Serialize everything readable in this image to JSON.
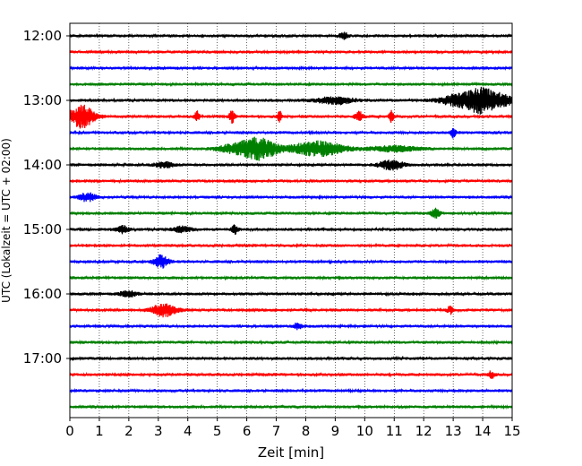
{
  "chart_data": {
    "type": "line",
    "title": "",
    "xlabel": "Zeit  [min]",
    "ylabel": "UTC (Lokalzeit = UTC + 02:00)",
    "xlim": [
      0,
      15
    ],
    "x_ticks": [
      "0",
      "1",
      "2",
      "3",
      "4",
      "5",
      "6",
      "7",
      "8",
      "9",
      "10",
      "11",
      "12",
      "13",
      "14",
      "15"
    ],
    "y_tick_labels": [
      "12:00",
      "13:00",
      "14:00",
      "15:00",
      "16:00",
      "17:00"
    ],
    "grid": "vertical dotted at each minute",
    "row_minutes": 15,
    "rows": [
      {
        "start": "12:00",
        "color": "#000000",
        "events": [
          {
            "t": 9.3,
            "amp": 3,
            "dur": 0.15
          }
        ]
      },
      {
        "start": "12:15",
        "color": "#ff0000",
        "events": []
      },
      {
        "start": "12:30",
        "color": "#0000ff",
        "events": []
      },
      {
        "start": "12:45",
        "color": "#008000",
        "events": []
      },
      {
        "start": "13:00",
        "color": "#000000",
        "events": [
          {
            "t": 9.0,
            "amp": 4,
            "dur": 0.6
          },
          {
            "t": 13.2,
            "amp": 7,
            "dur": 0.6
          },
          {
            "t": 14.0,
            "amp": 14,
            "dur": 0.45
          },
          {
            "t": 14.7,
            "amp": 6,
            "dur": 0.3
          }
        ]
      },
      {
        "start": "13:15",
        "color": "#ff0000",
        "events": [
          {
            "t": 0.4,
            "amp": 12,
            "dur": 0.45
          },
          {
            "t": 4.3,
            "amp": 6,
            "dur": 0.08
          },
          {
            "t": 5.5,
            "amp": 7,
            "dur": 0.08
          },
          {
            "t": 7.1,
            "amp": 6,
            "dur": 0.08
          },
          {
            "t": 9.8,
            "amp": 5,
            "dur": 0.15
          },
          {
            "t": 10.9,
            "amp": 6,
            "dur": 0.08
          }
        ]
      },
      {
        "start": "13:30",
        "color": "#0000ff",
        "events": [
          {
            "t": 13.0,
            "amp": 6,
            "dur": 0.08
          }
        ]
      },
      {
        "start": "13:45",
        "color": "#008000",
        "events": [
          {
            "t": 5.5,
            "amp": 4,
            "dur": 0.5
          },
          {
            "t": 6.4,
            "amp": 12,
            "dur": 0.6
          },
          {
            "t": 8.4,
            "amp": 8,
            "dur": 0.9
          },
          {
            "t": 11.0,
            "amp": 3,
            "dur": 0.8
          }
        ]
      },
      {
        "start": "14:00",
        "color": "#000000",
        "events": [
          {
            "t": 3.2,
            "amp": 3,
            "dur": 0.3
          },
          {
            "t": 10.9,
            "amp": 5,
            "dur": 0.4
          }
        ]
      },
      {
        "start": "14:15",
        "color": "#ff0000",
        "events": []
      },
      {
        "start": "14:30",
        "color": "#0000ff",
        "events": [
          {
            "t": 0.6,
            "amp": 5,
            "dur": 0.25
          }
        ]
      },
      {
        "start": "14:45",
        "color": "#008000",
        "events": [
          {
            "t": 12.4,
            "amp": 5,
            "dur": 0.15
          }
        ]
      },
      {
        "start": "15:00",
        "color": "#000000",
        "events": [
          {
            "t": 1.8,
            "amp": 4,
            "dur": 0.2
          },
          {
            "t": 3.8,
            "amp": 3,
            "dur": 0.3
          },
          {
            "t": 5.6,
            "amp": 5,
            "dur": 0.1
          }
        ]
      },
      {
        "start": "15:15",
        "color": "#ff0000",
        "events": []
      },
      {
        "start": "15:30",
        "color": "#0000ff",
        "events": [
          {
            "t": 3.1,
            "amp": 7,
            "dur": 0.25
          }
        ]
      },
      {
        "start": "15:45",
        "color": "#008000",
        "events": []
      },
      {
        "start": "16:00",
        "color": "#000000",
        "events": [
          {
            "t": 2.0,
            "amp": 3,
            "dur": 0.3
          }
        ]
      },
      {
        "start": "16:15",
        "color": "#ff0000",
        "events": [
          {
            "t": 3.2,
            "amp": 7,
            "dur": 0.4
          },
          {
            "t": 12.9,
            "amp": 4,
            "dur": 0.1
          }
        ]
      },
      {
        "start": "16:30",
        "color": "#0000ff",
        "events": [
          {
            "t": 7.7,
            "amp": 3,
            "dur": 0.15
          }
        ]
      },
      {
        "start": "16:45",
        "color": "#008000",
        "events": []
      },
      {
        "start": "17:00",
        "color": "#000000",
        "events": []
      },
      {
        "start": "17:15",
        "color": "#ff0000",
        "events": [
          {
            "t": 14.3,
            "amp": 4,
            "dur": 0.1
          }
        ]
      },
      {
        "start": "17:30",
        "color": "#0000ff",
        "events": []
      },
      {
        "start": "17:45",
        "color": "#008000",
        "events": []
      }
    ]
  }
}
